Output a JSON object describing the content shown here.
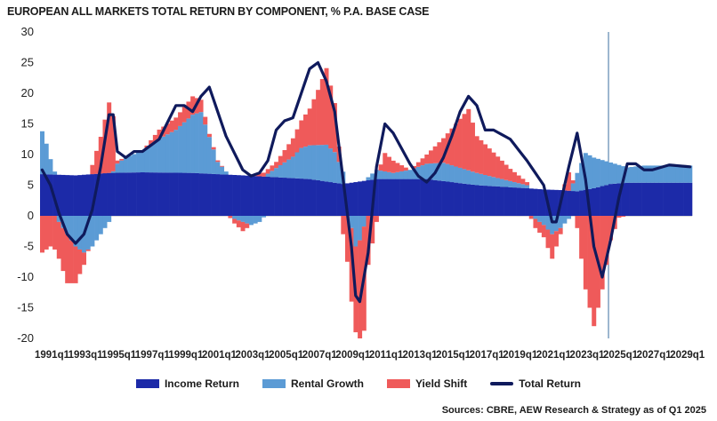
{
  "chart_data": {
    "type": "bar",
    "title": "EUROPEAN ALL MARKETS TOTAL RETURN BY COMPONENT, % P.A. BASE CASE",
    "ylim": [
      -20,
      30
    ],
    "yticks": [
      30,
      25,
      20,
      15,
      10,
      5,
      0,
      -5,
      -10,
      -15,
      -20
    ],
    "x_start": "1991q1",
    "periods_per_year": 4,
    "n_periods": 156,
    "forecast_start": "2025q1",
    "xtick_labels": [
      "1991q1",
      "1993q1",
      "1995q1",
      "1997q1",
      "1999q1",
      "2001q1",
      "2003q1",
      "2005q1",
      "2007q1",
      "2009q1",
      "2011q1",
      "2013q1",
      "2015q1",
      "2017q1",
      "2019q1",
      "2021q1",
      "2023q1",
      "2025q1",
      "2027q1",
      "2029q1"
    ],
    "stacked": true,
    "keyframes_note": "",
    "series": [
      {
        "name": "Income Return",
        "color": "#1c2aa8",
        "kind": "bar",
        "keyframes": [
          [
            0,
            6.8
          ],
          [
            8,
            6.6
          ],
          [
            16,
            7
          ],
          [
            24,
            7.1
          ],
          [
            36,
            7
          ],
          [
            48,
            6.6
          ],
          [
            64,
            6
          ],
          [
            72,
            5.2
          ],
          [
            80,
            6
          ],
          [
            92,
            6
          ],
          [
            104,
            5
          ],
          [
            116,
            4.5
          ],
          [
            120,
            4.3
          ],
          [
            124,
            4.2
          ],
          [
            128,
            4
          ],
          [
            132,
            4.5
          ],
          [
            136,
            5.2
          ],
          [
            140,
            5.4
          ],
          [
            155,
            5.4
          ]
        ]
      },
      {
        "name": "Rental Growth",
        "color": "#5b9bd5",
        "kind": "bar",
        "keyframes": [
          [
            0,
            7
          ],
          [
            1,
            5
          ],
          [
            2,
            2.5
          ],
          [
            3,
            0.5
          ],
          [
            4,
            -1
          ],
          [
            6,
            -3
          ],
          [
            8,
            -5
          ],
          [
            10,
            -6
          ],
          [
            12,
            -5
          ],
          [
            14,
            -3
          ],
          [
            16,
            -1
          ],
          [
            18,
            1.5
          ],
          [
            20,
            2.5
          ],
          [
            24,
            3.5
          ],
          [
            28,
            5.5
          ],
          [
            32,
            7
          ],
          [
            36,
            9.5
          ],
          [
            38,
            10
          ],
          [
            40,
            6
          ],
          [
            42,
            2
          ],
          [
            44,
            0.5
          ],
          [
            46,
            -0.5
          ],
          [
            48,
            -1
          ],
          [
            50,
            -1.5
          ],
          [
            52,
            -1
          ],
          [
            54,
            0.5
          ],
          [
            56,
            1.5
          ],
          [
            60,
            3.5
          ],
          [
            62,
            5
          ],
          [
            64,
            5.5
          ],
          [
            68,
            6
          ],
          [
            70,
            5
          ],
          [
            72,
            2
          ],
          [
            74,
            -2
          ],
          [
            75,
            -5
          ],
          [
            76,
            -4
          ],
          [
            78,
            0.5
          ],
          [
            80,
            1.5
          ],
          [
            84,
            1
          ],
          [
            88,
            1.5
          ],
          [
            92,
            2.5
          ],
          [
            96,
            3
          ],
          [
            100,
            2.5
          ],
          [
            104,
            2
          ],
          [
            108,
            1.5
          ],
          [
            112,
            1
          ],
          [
            116,
            0.5
          ],
          [
            118,
            -0.5
          ],
          [
            120,
            -1.5
          ],
          [
            122,
            -3
          ],
          [
            124,
            -2
          ],
          [
            126,
            -0.5
          ],
          [
            128,
            3
          ],
          [
            130,
            6
          ],
          [
            132,
            5
          ],
          [
            136,
            3.5
          ],
          [
            140,
            2.5
          ],
          [
            144,
            2.8
          ],
          [
            155,
            2.8
          ]
        ]
      },
      {
        "name": "Yield Shift",
        "color": "#ef5a5a",
        "kind": "bar",
        "keyframes": [
          [
            0,
            -6
          ],
          [
            2,
            -5
          ],
          [
            4,
            -6
          ],
          [
            6,
            -8
          ],
          [
            8,
            -6
          ],
          [
            10,
            -2
          ],
          [
            12,
            1.5
          ],
          [
            14,
            6
          ],
          [
            16,
            11.5
          ],
          [
            17,
            9
          ],
          [
            18,
            0.5
          ],
          [
            20,
            0
          ],
          [
            24,
            0
          ],
          [
            28,
            1.5
          ],
          [
            32,
            2
          ],
          [
            36,
            3
          ],
          [
            38,
            2
          ],
          [
            40,
            0.5
          ],
          [
            44,
            0
          ],
          [
            48,
            -1.5
          ],
          [
            50,
            0
          ],
          [
            52,
            0.5
          ],
          [
            56,
            1
          ],
          [
            60,
            3
          ],
          [
            64,
            6
          ],
          [
            66,
            9
          ],
          [
            68,
            12.5
          ],
          [
            70,
            8
          ],
          [
            72,
            -3
          ],
          [
            74,
            -12
          ],
          [
            76,
            -16
          ],
          [
            77,
            -17
          ],
          [
            78,
            -8
          ],
          [
            80,
            -1
          ],
          [
            82,
            3
          ],
          [
            84,
            2
          ],
          [
            88,
            0
          ],
          [
            92,
            1.5
          ],
          [
            96,
            4
          ],
          [
            100,
            8
          ],
          [
            102,
            10
          ],
          [
            104,
            6
          ],
          [
            108,
            4
          ],
          [
            112,
            2
          ],
          [
            116,
            0.5
          ],
          [
            118,
            -1.5
          ],
          [
            120,
            -2
          ],
          [
            122,
            -4
          ],
          [
            124,
            -1
          ],
          [
            126,
            3
          ],
          [
            128,
            -2
          ],
          [
            130,
            -12
          ],
          [
            132,
            -18
          ],
          [
            134,
            -12
          ],
          [
            136,
            -4
          ],
          [
            138,
            -0.3
          ],
          [
            140,
            0
          ],
          [
            155,
            0
          ]
        ]
      },
      {
        "name": "Total Return",
        "color": "#0f1a5c",
        "kind": "line",
        "keyframes": [
          [
            0,
            7.5
          ],
          [
            2,
            5
          ],
          [
            4,
            0.5
          ],
          [
            6,
            -3
          ],
          [
            8,
            -4.5
          ],
          [
            10,
            -3
          ],
          [
            12,
            1
          ],
          [
            14,
            8
          ],
          [
            16,
            16.5
          ],
          [
            17,
            16.5
          ],
          [
            18,
            10.5
          ],
          [
            20,
            9.5
          ],
          [
            22,
            10.5
          ],
          [
            24,
            10.5
          ],
          [
            28,
            12.5
          ],
          [
            32,
            18
          ],
          [
            34,
            18
          ],
          [
            36,
            17
          ],
          [
            38,
            19.5
          ],
          [
            40,
            21
          ],
          [
            42,
            17
          ],
          [
            44,
            13
          ],
          [
            48,
            7.5
          ],
          [
            50,
            6.5
          ],
          [
            52,
            7
          ],
          [
            54,
            9
          ],
          [
            56,
            14
          ],
          [
            58,
            15.5
          ],
          [
            60,
            16
          ],
          [
            62,
            20
          ],
          [
            64,
            24
          ],
          [
            66,
            25
          ],
          [
            68,
            22
          ],
          [
            70,
            17
          ],
          [
            72,
            6
          ],
          [
            74,
            -5
          ],
          [
            75,
            -13
          ],
          [
            76,
            -14
          ],
          [
            78,
            -6
          ],
          [
            80,
            8
          ],
          [
            82,
            15
          ],
          [
            84,
            13.5
          ],
          [
            86,
            11
          ],
          [
            88,
            8.5
          ],
          [
            90,
            6.5
          ],
          [
            92,
            5.5
          ],
          [
            94,
            7
          ],
          [
            96,
            9.5
          ],
          [
            98,
            13
          ],
          [
            100,
            17
          ],
          [
            102,
            19.5
          ],
          [
            104,
            18
          ],
          [
            106,
            14
          ],
          [
            108,
            14
          ],
          [
            112,
            12.5
          ],
          [
            116,
            9
          ],
          [
            118,
            7
          ],
          [
            120,
            5
          ],
          [
            122,
            -1
          ],
          [
            123,
            -1
          ],
          [
            124,
            2
          ],
          [
            126,
            8
          ],
          [
            128,
            13.5
          ],
          [
            130,
            6
          ],
          [
            132,
            -5
          ],
          [
            134,
            -10
          ],
          [
            136,
            -4
          ],
          [
            138,
            3
          ],
          [
            140,
            8.5
          ],
          [
            142,
            8.5
          ],
          [
            144,
            7.5
          ],
          [
            146,
            7.5
          ],
          [
            150,
            8.3
          ],
          [
            155,
            8
          ]
        ]
      }
    ]
  },
  "legend": {
    "items": [
      {
        "label": "Income Return",
        "color": "#1c2aa8"
      },
      {
        "label": "Rental Growth",
        "color": "#5b9bd5"
      },
      {
        "label": "Yield Shift",
        "color": "#ef5a5a"
      },
      {
        "label": "Total Return",
        "color": "#0f1a5c"
      }
    ]
  },
  "source": "Sources: CBRE, AEW Research & Strategy as of Q1 2025"
}
